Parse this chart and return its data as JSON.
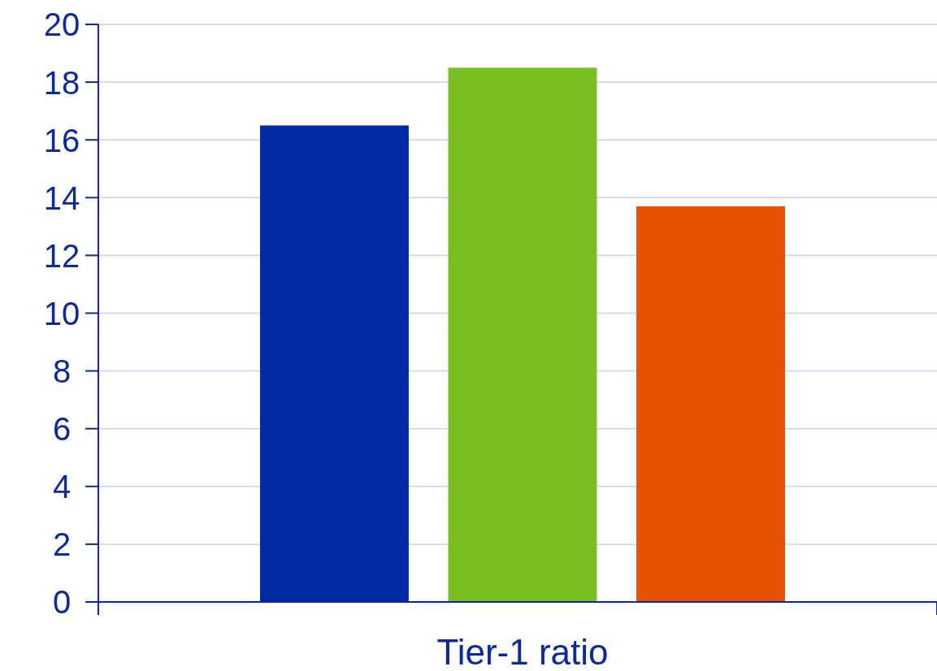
{
  "chart_data": {
    "type": "bar",
    "categories": [
      "Tier-1 ratio"
    ],
    "series": [
      {
        "color": "#0029a3",
        "values": [
          16.5
        ]
      },
      {
        "color": "#7abf22",
        "values": [
          18.5
        ]
      },
      {
        "color": "#e35205",
        "values": [
          13.7
        ]
      }
    ],
    "ylim": [
      0,
      20
    ],
    "yticks": [
      0,
      2,
      4,
      6,
      8,
      10,
      12,
      14,
      16,
      18,
      20
    ],
    "grid": "y"
  }
}
